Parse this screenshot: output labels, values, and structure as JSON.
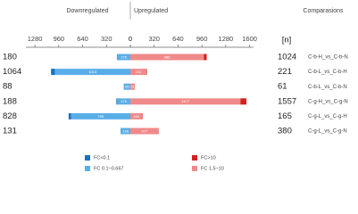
{
  "chart_data": {
    "type": "diverging_bar",
    "down_title": "Downregulated",
    "up_title": "Upregulated",
    "n_label": "[n]",
    "comparisons_label": "Comparasions",
    "categories": [
      "C-b-H_vs_C-b-N",
      "C-b-L_vs_C-b-H",
      "C-b-L_vs_C-b-N",
      "C-g-H_vs_C-g-N",
      "C-g-L_vs_C-g-H",
      "C-g-L_vs_C-g-N"
    ],
    "down_totals": [
      180,
      1064,
      88,
      188,
      828,
      131
    ],
    "up_totals": [
      1024,
      221,
      61,
      1557,
      165,
      380
    ],
    "xlim_down": [
      0,
      1400
    ],
    "xlim_up": [
      0,
      1650
    ],
    "xticks_down": [
      0,
      320,
      640,
      960,
      1280
    ],
    "xticks_up": [
      0,
      320,
      640,
      960,
      1280,
      1600
    ],
    "series": [
      {
        "name": "FC 0.1~0.667",
        "color": "#5aaee8",
        "side": "down",
        "values": [
          176,
          1013,
          85,
          176,
          795,
          128
        ]
      },
      {
        "name": "FC<0.1",
        "color": "#1f6fc0",
        "side": "down",
        "values": [
          4,
          51,
          3,
          12,
          33,
          3
        ]
      },
      {
        "name": "FC 1.5~10",
        "color": "#f08a8a",
        "side": "up",
        "values": [
          986,
          212,
          61,
          1477,
          160,
          377
        ]
      },
      {
        "name": "FC>10",
        "color": "#d42020",
        "side": "up",
        "values": [
          38,
          9,
          0,
          80,
          5,
          3
        ]
      }
    ]
  }
}
